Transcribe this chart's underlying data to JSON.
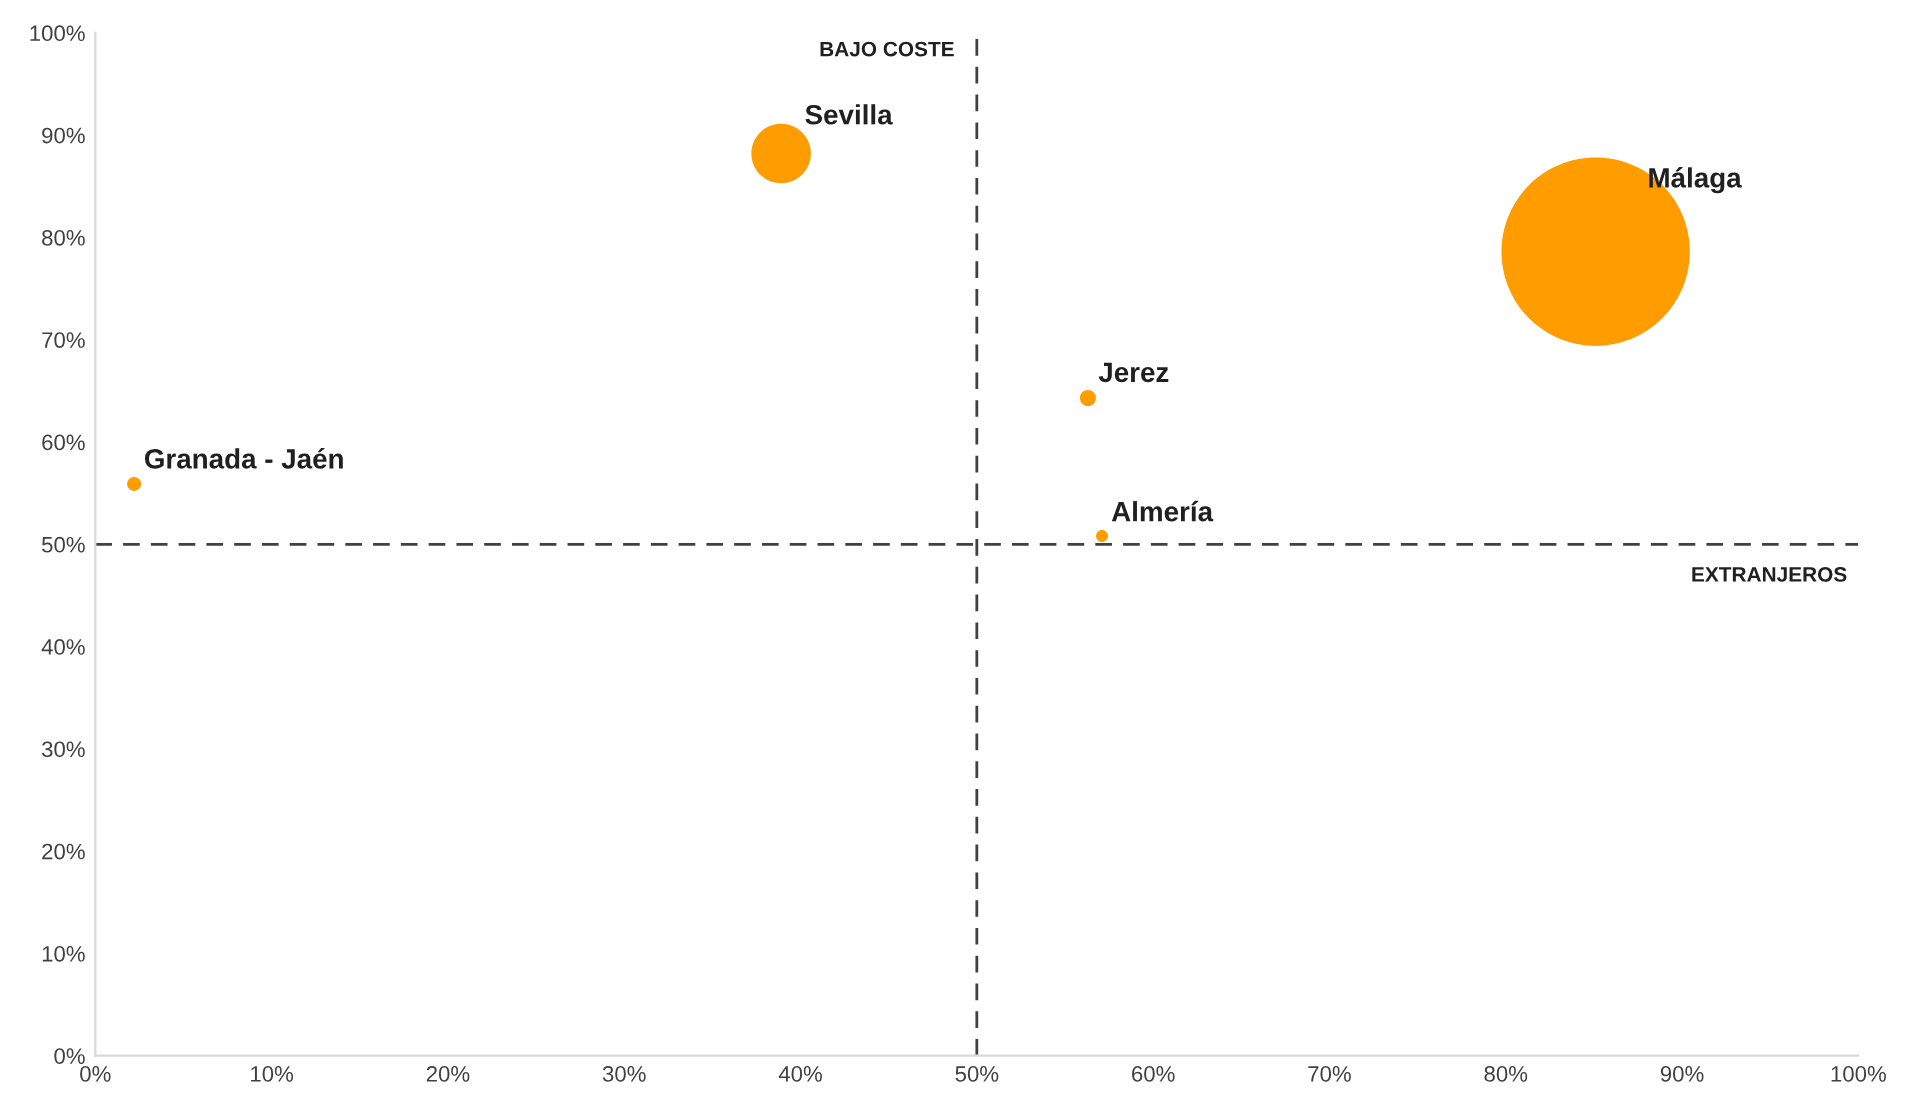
{
  "chart_data": {
    "type": "bubble",
    "x": [
      38.9,
      85.1,
      56.3,
      57.1,
      2.2
    ],
    "series": [
      {
        "color": "#ff9c00",
        "values": [
          88.2,
          78.6,
          64.3,
          50.8,
          55.9
        ],
        "sizes": [
          0.1,
          1,
          0.0072,
          0.004,
          0.0055
        ]
      }
    ],
    "annotations": [
      {
        "text": "Sevilla",
        "x": 38.9,
        "y": 88.2
      },
      {
        "text": "Málaga",
        "x": 85.1,
        "y": 78.6
      },
      {
        "text": "Jerez",
        "x": 56.3,
        "y": 64.3
      },
      {
        "text": "Almería",
        "x": 57.1,
        "y": 50.8
      },
      {
        "text": "Granada - Jaén",
        "x": 2.2,
        "y": 55.9
      }
    ],
    "ref_lines": [
      {
        "axis": "x",
        "value": 50,
        "label": "BAJO COSTE",
        "color": "#404040",
        "line_style": "dashed"
      },
      {
        "axis": "y",
        "value": 50,
        "label": "EXTRANJEROS",
        "color": "#404040",
        "line_style": "dashed"
      }
    ],
    "xlim": [
      0,
      100
    ],
    "ylim": [
      0,
      100
    ],
    "xticks": [
      {
        "value": 0,
        "label": "0%"
      },
      {
        "value": 10,
        "label": "10%"
      },
      {
        "value": 20,
        "label": "20%"
      },
      {
        "value": 30,
        "label": "30%"
      },
      {
        "value": 40,
        "label": "40%"
      },
      {
        "value": 50,
        "label": "50%"
      },
      {
        "value": 60,
        "label": "60%"
      },
      {
        "value": 70,
        "label": "70%"
      },
      {
        "value": 80,
        "label": "80%"
      },
      {
        "value": 90,
        "label": "90%"
      },
      {
        "value": 100,
        "label": "100%"
      }
    ],
    "yticks": [
      {
        "value": 0,
        "label": "0%"
      },
      {
        "value": 10,
        "label": "10%"
      },
      {
        "value": 20,
        "label": "20%"
      },
      {
        "value": 30,
        "label": "30%"
      },
      {
        "value": 40,
        "label": "40%"
      },
      {
        "value": 50,
        "label": "50%"
      },
      {
        "value": 60,
        "label": "60%"
      },
      {
        "value": 70,
        "label": "70%"
      },
      {
        "value": 80,
        "label": "80%"
      },
      {
        "value": 90,
        "label": "90%"
      },
      {
        "value": 100,
        "label": "100%"
      }
    ],
    "grid": false
  }
}
